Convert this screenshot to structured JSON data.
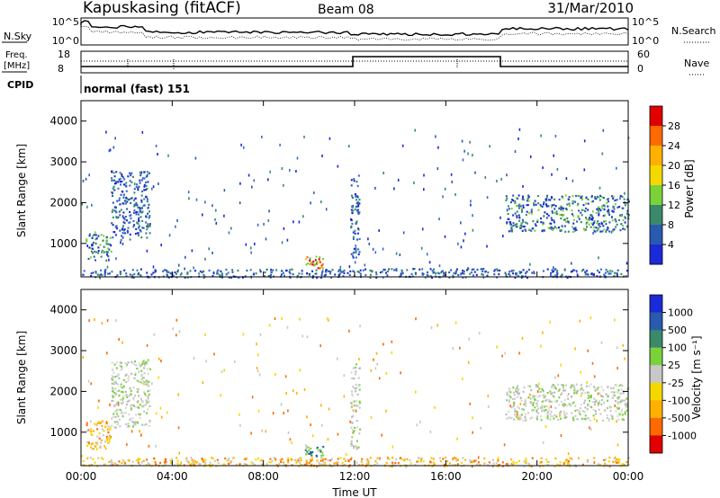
{
  "header": {
    "station": "Kapuskasing (fitACF)",
    "beam": "Beam 08",
    "date": "31/Mar/2010"
  },
  "strips": {
    "nsky_label": "N.Sky",
    "nsky_ticks": [
      "10^5",
      "10^0"
    ],
    "nsearch_label": "N.Search",
    "nsearch_ticks": [
      "10^5",
      "10^0"
    ],
    "freq_label_1": "Freq.",
    "freq_label_2": "[MHz]",
    "freq_ticks": [
      "18",
      "8"
    ],
    "nave_label": "Nave",
    "nave_ticks": [
      "60",
      "0"
    ],
    "cpid_label": "CPID",
    "cpid_value": "normal (fast) 151"
  },
  "chart_data": [
    {
      "type": "heatmap",
      "panel": "power",
      "ylabel": "Slant Range [km]",
      "xlabel": "",
      "x_ticks": [
        "00:00",
        "04:00",
        "08:00",
        "12:00",
        "16:00",
        "20:00",
        "00:00"
      ],
      "y_ticks": [
        "4000",
        "3000",
        "2000",
        "1000"
      ],
      "xlim_hours": [
        0,
        24
      ],
      "ylim_km": [
        180,
        4500
      ],
      "colorbar_label": "Power [dB]",
      "colorbar_ticks": [
        "28",
        "24",
        "20",
        "16",
        "12",
        "8",
        "4"
      ],
      "colorbar_colors": [
        "#e00000",
        "#ff6a00",
        "#ffb000",
        "#f5d800",
        "#7ad13a",
        "#3a8a6a",
        "#2a5ab0",
        "#1a2ad8"
      ],
      "scatter_regions": [
        {
          "t": [
            0.2,
            1.3
          ],
          "r": [
            600,
            1300
          ],
          "level": "mid"
        },
        {
          "t": [
            1.3,
            3.0
          ],
          "r": [
            1100,
            2800
          ],
          "level": "low"
        },
        {
          "t": [
            9.8,
            10.6
          ],
          "r": [
            400,
            700
          ],
          "level": "high"
        },
        {
          "t": [
            11.8,
            12.2
          ],
          "r": [
            600,
            2700
          ],
          "level": "low"
        },
        {
          "t": [
            18.6,
            24.0
          ],
          "r": [
            1300,
            2200
          ],
          "level": "mid"
        },
        {
          "t": [
            0.0,
            24.0
          ],
          "r": [
            180,
            400
          ],
          "level": "low"
        }
      ]
    },
    {
      "type": "heatmap",
      "panel": "velocity",
      "ylabel": "Slant Range [km]",
      "xlabel": "Time UT",
      "x_ticks": [
        "00:00",
        "04:00",
        "08:00",
        "12:00",
        "16:00",
        "20:00",
        "00:00"
      ],
      "y_ticks": [
        "4000",
        "3000",
        "2000",
        "1000"
      ],
      "xlim_hours": [
        0,
        24
      ],
      "ylim_km": [
        180,
        4500
      ],
      "colorbar_label": "Velocity [m s⁻¹]",
      "colorbar_ticks": [
        "1000",
        "500",
        "100",
        "25",
        "-25",
        "-100",
        "-500",
        "-1000"
      ],
      "colorbar_colors": [
        "#1a2ad8",
        "#2a5ab0",
        "#3a8a6a",
        "#7ad13a",
        "#c8c8c8",
        "#f5d800",
        "#ffb000",
        "#ff6a00",
        "#e00000"
      ],
      "scatter_regions": [
        {
          "t": [
            0.2,
            1.3
          ],
          "r": [
            600,
            1300
          ],
          "level": "neg"
        },
        {
          "t": [
            1.3,
            3.0
          ],
          "r": [
            1100,
            2800
          ],
          "level": "zero"
        },
        {
          "t": [
            9.8,
            10.6
          ],
          "r": [
            400,
            700
          ],
          "level": "pos"
        },
        {
          "t": [
            11.8,
            12.2
          ],
          "r": [
            600,
            2700
          ],
          "level": "zero"
        },
        {
          "t": [
            18.6,
            24.0
          ],
          "r": [
            1300,
            2200
          ],
          "level": "zero"
        },
        {
          "t": [
            0.0,
            24.0
          ],
          "r": [
            180,
            400
          ],
          "level": "neg"
        }
      ]
    }
  ]
}
